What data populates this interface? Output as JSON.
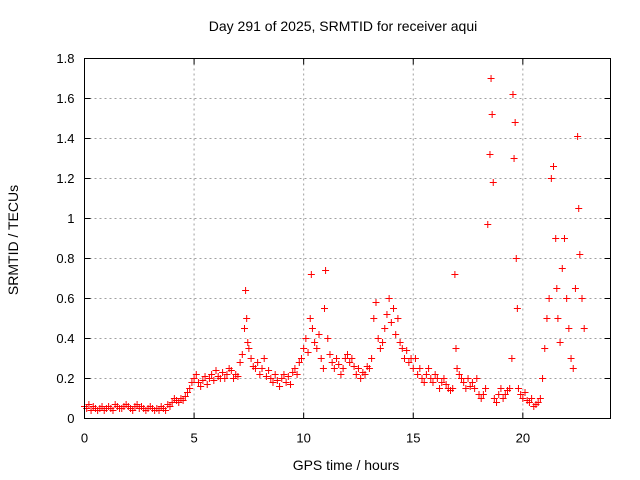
{
  "chart_data": {
    "type": "scatter",
    "title": "Day 291 of 2025, SRMTID for receiver aqui",
    "xlabel": "GPS time / hours",
    "ylabel": "SRMTID / TECUs",
    "xlim": [
      0,
      24
    ],
    "ylim": [
      0,
      1.8
    ],
    "x_ticks": [
      0,
      5,
      10,
      15,
      20
    ],
    "x_tick_labels": [
      "0",
      "5",
      "10",
      "15",
      "20"
    ],
    "y_ticks": [
      0,
      0.2,
      0.4,
      0.6,
      0.8,
      1.0,
      1.2,
      1.4,
      1.6,
      1.8
    ],
    "y_tick_labels": [
      "0",
      "0.2",
      "0.4",
      "0.6",
      "0.8",
      "1",
      "1.2",
      "1.4",
      "1.6",
      "1.8"
    ],
    "grid": true,
    "marker": "+",
    "color": "#ff0000",
    "series": [
      {
        "name": "SRMTID",
        "x": [
          0.0,
          0.1,
          0.2,
          0.3,
          0.4,
          0.5,
          0.6,
          0.7,
          0.8,
          0.9,
          1.0,
          1.1,
          1.2,
          1.3,
          1.4,
          1.5,
          1.6,
          1.7,
          1.8,
          1.9,
          2.0,
          2.1,
          2.2,
          2.3,
          2.4,
          2.5,
          2.6,
          2.7,
          2.8,
          2.9,
          3.0,
          3.1,
          3.2,
          3.3,
          3.4,
          3.5,
          3.6,
          3.7,
          3.8,
          3.9,
          4.0,
          4.1,
          4.2,
          4.3,
          4.4,
          4.5,
          4.6,
          4.7,
          4.8,
          4.9,
          5.0,
          5.1,
          5.2,
          5.3,
          5.4,
          5.5,
          5.6,
          5.7,
          5.8,
          5.9,
          6.0,
          6.1,
          6.2,
          6.3,
          6.4,
          6.5,
          6.6,
          6.7,
          6.8,
          6.9,
          7.0,
          7.1,
          7.2,
          7.3,
          7.35,
          7.4,
          7.45,
          7.5,
          7.6,
          7.7,
          7.8,
          7.9,
          8.0,
          8.1,
          8.2,
          8.3,
          8.4,
          8.5,
          8.6,
          8.7,
          8.8,
          8.9,
          9.0,
          9.1,
          9.2,
          9.3,
          9.4,
          9.5,
          9.6,
          9.7,
          9.8,
          9.9,
          10.0,
          10.1,
          10.2,
          10.3,
          10.35,
          10.4,
          10.5,
          10.6,
          10.7,
          10.8,
          10.9,
          10.95,
          11.0,
          11.1,
          11.2,
          11.3,
          11.4,
          11.5,
          11.6,
          11.7,
          11.8,
          11.9,
          12.0,
          12.1,
          12.2,
          12.3,
          12.4,
          12.5,
          12.6,
          12.7,
          12.8,
          12.9,
          13.0,
          13.1,
          13.2,
          13.3,
          13.4,
          13.5,
          13.6,
          13.7,
          13.8,
          13.9,
          14.0,
          14.1,
          14.2,
          14.3,
          14.4,
          14.5,
          14.6,
          14.7,
          14.8,
          14.9,
          15.0,
          15.1,
          15.2,
          15.3,
          15.4,
          15.5,
          15.6,
          15.7,
          15.8,
          15.9,
          16.0,
          16.1,
          16.2,
          16.3,
          16.4,
          16.5,
          16.6,
          16.7,
          16.8,
          16.9,
          16.95,
          17.0,
          17.1,
          17.2,
          17.3,
          17.4,
          17.5,
          17.6,
          17.7,
          17.8,
          17.9,
          18.0,
          18.1,
          18.2,
          18.3,
          18.4,
          18.5,
          18.55,
          18.6,
          18.65,
          18.7,
          18.8,
          18.9,
          19.0,
          19.1,
          19.2,
          19.3,
          19.4,
          19.5,
          19.55,
          19.6,
          19.65,
          19.7,
          19.75,
          19.8,
          19.9,
          20.0,
          20.1,
          20.2,
          20.3,
          20.4,
          20.5,
          20.6,
          20.7,
          20.8,
          20.9,
          21.0,
          21.1,
          21.2,
          21.3,
          21.4,
          21.5,
          21.55,
          21.6,
          21.7,
          21.8,
          21.9,
          22.0,
          22.1,
          22.2,
          22.3,
          22.4,
          22.5,
          22.55,
          22.6,
          22.7,
          22.8
        ],
        "y": [
          0.06,
          0.05,
          0.07,
          0.04,
          0.06,
          0.05,
          0.04,
          0.05,
          0.06,
          0.04,
          0.05,
          0.06,
          0.05,
          0.04,
          0.07,
          0.06,
          0.05,
          0.05,
          0.06,
          0.07,
          0.06,
          0.05,
          0.04,
          0.06,
          0.07,
          0.05,
          0.06,
          0.05,
          0.04,
          0.05,
          0.06,
          0.05,
          0.04,
          0.05,
          0.04,
          0.06,
          0.05,
          0.04,
          0.07,
          0.06,
          0.08,
          0.1,
          0.09,
          0.08,
          0.1,
          0.09,
          0.11,
          0.13,
          0.15,
          0.18,
          0.2,
          0.22,
          0.18,
          0.16,
          0.19,
          0.21,
          0.17,
          0.2,
          0.22,
          0.19,
          0.24,
          0.21,
          0.2,
          0.23,
          0.2,
          0.22,
          0.25,
          0.24,
          0.2,
          0.22,
          0.21,
          0.28,
          0.32,
          0.45,
          0.64,
          0.5,
          0.38,
          0.35,
          0.3,
          0.26,
          0.25,
          0.28,
          0.22,
          0.25,
          0.3,
          0.21,
          0.24,
          0.2,
          0.18,
          0.22,
          0.19,
          0.16,
          0.2,
          0.22,
          0.18,
          0.21,
          0.17,
          0.23,
          0.25,
          0.22,
          0.28,
          0.3,
          0.35,
          0.4,
          0.33,
          0.5,
          0.72,
          0.45,
          0.38,
          0.35,
          0.42,
          0.3,
          0.25,
          0.55,
          0.74,
          0.4,
          0.32,
          0.28,
          0.25,
          0.3,
          0.27,
          0.22,
          0.25,
          0.3,
          0.32,
          0.28,
          0.3,
          0.26,
          0.22,
          0.25,
          0.2,
          0.23,
          0.22,
          0.26,
          0.25,
          0.3,
          0.5,
          0.58,
          0.4,
          0.35,
          0.38,
          0.45,
          0.52,
          0.6,
          0.48,
          0.55,
          0.42,
          0.5,
          0.38,
          0.35,
          0.3,
          0.34,
          0.28,
          0.3,
          0.25,
          0.3,
          0.22,
          0.25,
          0.2,
          0.18,
          0.22,
          0.25,
          0.2,
          0.18,
          0.22,
          0.2,
          0.15,
          0.18,
          0.2,
          0.17,
          0.15,
          0.14,
          0.15,
          0.72,
          0.35,
          0.25,
          0.22,
          0.2,
          0.18,
          0.15,
          0.2,
          0.16,
          0.18,
          0.15,
          0.2,
          0.12,
          0.1,
          0.12,
          0.15,
          0.97,
          1.32,
          1.7,
          1.52,
          1.18,
          0.1,
          0.08,
          0.12,
          0.15,
          0.1,
          0.12,
          0.14,
          0.15,
          0.3,
          1.62,
          1.3,
          1.48,
          0.8,
          0.55,
          0.15,
          0.12,
          0.1,
          0.13,
          0.09,
          0.08,
          0.1,
          0.06,
          0.07,
          0.08,
          0.1,
          0.2,
          0.35,
          0.5,
          0.6,
          1.2,
          1.26,
          0.9,
          0.65,
          0.5,
          0.38,
          0.75,
          0.9,
          0.6,
          0.45,
          0.3,
          0.25,
          0.65,
          1.41,
          1.05,
          0.82,
          0.6,
          0.45
        ]
      }
    ]
  }
}
